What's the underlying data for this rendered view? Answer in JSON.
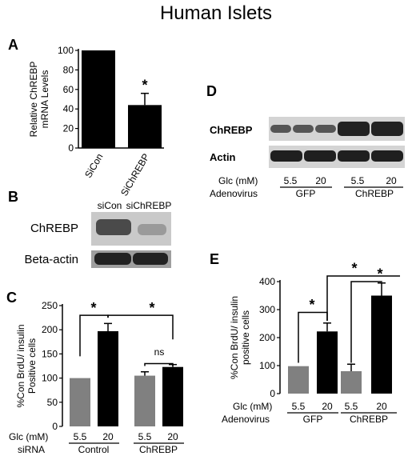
{
  "figure": {
    "title": "Human Islets",
    "colors": {
      "black_bar": "#000000",
      "gray_bar": "#808080",
      "blot_band": "#2a2a2a",
      "blot_bg": "#d9d9d9"
    }
  },
  "chart_data": [
    {
      "panel": "A",
      "type": "bar",
      "ylabel": "Relative ChREBP mRNA Levels",
      "ylim": [
        0,
        100
      ],
      "yticks": [
        0,
        20,
        40,
        60,
        80,
        100
      ],
      "categories": [
        "SiCon",
        "SiChREBP"
      ],
      "values": [
        100,
        44
      ],
      "errors": [
        0,
        12
      ],
      "colors": [
        "#000000",
        "#000000"
      ],
      "annotations": [
        "*"
      ]
    },
    {
      "panel": "B",
      "type": "blot",
      "lanes": [
        "siCon",
        "siChREBP"
      ],
      "rows": [
        "ChREBP",
        "Beta-actin"
      ]
    },
    {
      "panel": "C",
      "type": "bar",
      "ylabel": "%Con BrdU/ insulin Positive cells",
      "ylim": [
        0,
        250
      ],
      "yticks": [
        0,
        50,
        100,
        150,
        200,
        250
      ],
      "row1_label": "Glc (mM)",
      "row2_label": "siRNA",
      "categories": [
        "5.5",
        "20",
        "5.5",
        "20"
      ],
      "groups": [
        "Control",
        "ChREBP"
      ],
      "values": [
        100,
        197,
        105,
        123
      ],
      "errors": [
        0,
        16,
        8,
        5
      ],
      "colors": [
        "#808080",
        "#000000",
        "#808080",
        "#000000"
      ],
      "annotations": [
        "*",
        "*",
        "ns"
      ]
    },
    {
      "panel": "D",
      "type": "blot",
      "rows": [
        "ChREBP",
        "Actin"
      ],
      "row1_label": "Glc (mM)",
      "row2_label": "Adenovirus",
      "lanes": [
        "5.5",
        "20",
        "5.5",
        "20"
      ],
      "groups": [
        "GFP",
        "ChREBP"
      ]
    },
    {
      "panel": "E",
      "type": "bar",
      "ylabel": "%Con BrdU/ insulin positive cells",
      "ylim": [
        0,
        400
      ],
      "yticks": [
        0,
        100,
        200,
        300,
        400
      ],
      "row1_label": "Glc (mM)",
      "row2_label": "Adenovirus",
      "categories": [
        "5.5",
        "20",
        "5.5",
        "20"
      ],
      "groups": [
        "GFP",
        "ChREBP"
      ],
      "values": [
        98,
        222,
        80,
        350
      ],
      "errors": [
        0,
        30,
        25,
        45
      ],
      "colors": [
        "#808080",
        "#000000",
        "#808080",
        "#000000"
      ],
      "annotations": [
        "*",
        "*",
        "*"
      ]
    }
  ]
}
